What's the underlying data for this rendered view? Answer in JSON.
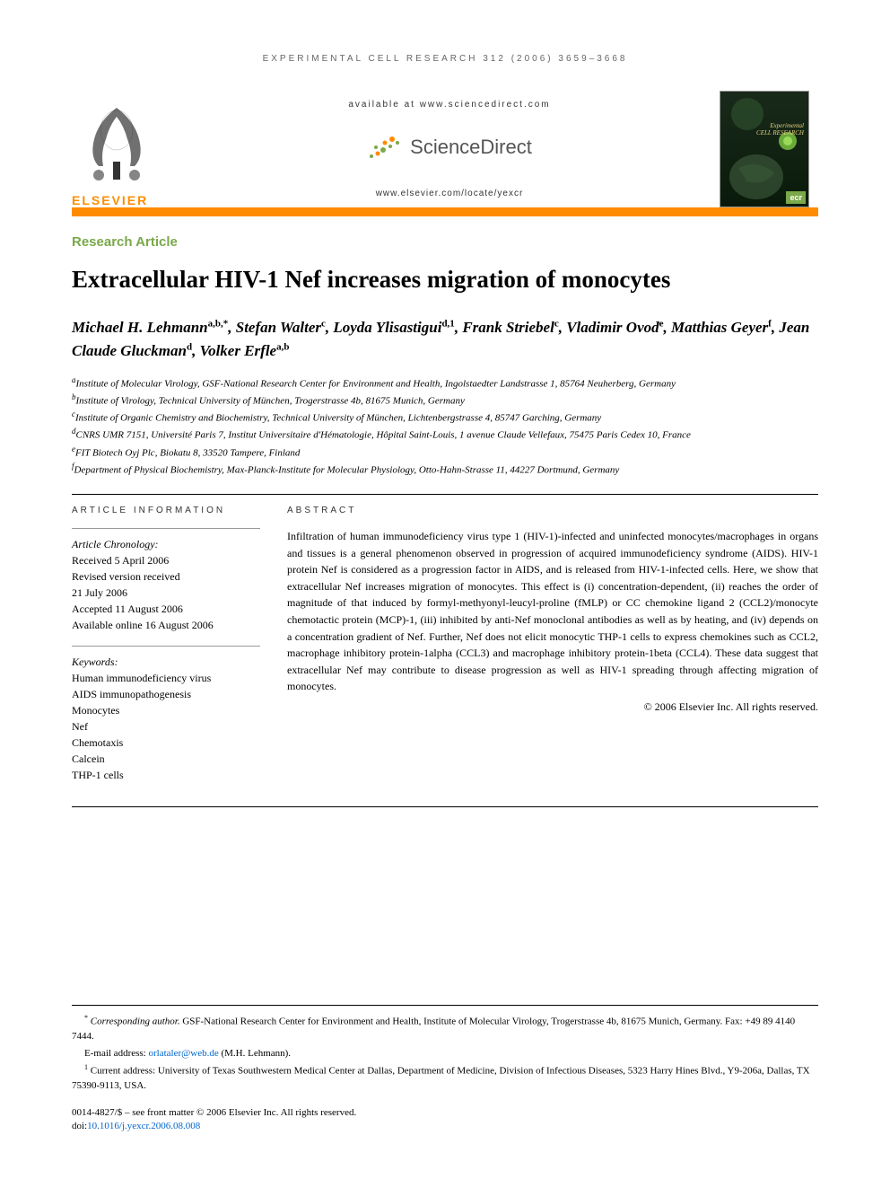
{
  "running_header": "EXPERIMENTAL CELL RESEARCH 312 (2006) 3659–3668",
  "masthead": {
    "elsevier": "ELSEVIER",
    "available": "available at www.sciencedirect.com",
    "sciencedirect": "ScienceDirect",
    "locate": "www.elsevier.com/locate/yexcr",
    "journal_title_1": "Experimental",
    "journal_title_2": "CELL RESEARCH",
    "ecr": "ecr"
  },
  "article_type": "Research Article",
  "title": "Extracellular HIV-1 Nef increases migration of monocytes",
  "authors_html": "Michael H. Lehmann<sup>a,b,*</sup>, Stefan Walter<sup>c</sup>, Loyda Ylisastigui<sup>d,1</sup>, Frank Striebel<sup>c</sup>, Vladimir Ovod<sup>e</sup>, Matthias Geyer<sup>f</sup>, Jean Claude Gluckman<sup>d</sup>, Volker Erfle<sup>a,b</sup>",
  "affiliations": [
    {
      "sup": "a",
      "text": "Institute of Molecular Virology, GSF-National Research Center for Environment and Health, Ingolstaedter Landstrasse 1, 85764 Neuherberg, Germany"
    },
    {
      "sup": "b",
      "text": "Institute of Virology, Technical University of München, Trogerstrasse 4b, 81675 Munich, Germany"
    },
    {
      "sup": "c",
      "text": "Institute of Organic Chemistry and Biochemistry, Technical University of München, Lichtenbergstrasse 4, 85747 Garching, Germany"
    },
    {
      "sup": "d",
      "text": "CNRS UMR 7151, Université Paris 7, Institut Universitaire d'Hématologie, Hôpital Saint-Louis, 1 avenue Claude Vellefaux, 75475 Paris Cedex 10, France"
    },
    {
      "sup": "e",
      "text": "FIT Biotech Oyj Plc, Biokatu 8, 33520 Tampere, Finland"
    },
    {
      "sup": "f",
      "text": "Department of Physical Biochemistry, Max-Planck-Institute for Molecular Physiology, Otto-Hahn-Strasse 11, 44227 Dortmund, Germany"
    }
  ],
  "info_heading": "ARTICLE INFORMATION",
  "abstract_heading": "ABSTRACT",
  "chronology": {
    "label": "Article Chronology:",
    "lines": [
      "Received 5 April 2006",
      "Revised version received",
      "21 July 2006",
      "Accepted 11 August 2006",
      "Available online 16 August 2006"
    ]
  },
  "keywords": {
    "label": "Keywords:",
    "items": [
      "Human immunodeficiency virus",
      "AIDS immunopathogenesis",
      "Monocytes",
      "Nef",
      "Chemotaxis",
      "Calcein",
      "THP-1 cells"
    ]
  },
  "abstract": "Infiltration of human immunodeficiency virus type 1 (HIV-1)-infected and uninfected monocytes/macrophages in organs and tissues is a general phenomenon observed in progression of acquired immunodeficiency syndrome (AIDS). HIV-1 protein Nef is considered as a progression factor in AIDS, and is released from HIV-1-infected cells. Here, we show that extracellular Nef increases migration of monocytes. This effect is (i) concentration-dependent, (ii) reaches the order of magnitude of that induced by formyl-methyonyl-leucyl-proline (fMLP) or CC chemokine ligand 2 (CCL2)/monocyte chemotactic protein (MCP)-1, (iii) inhibited by anti-Nef monoclonal antibodies as well as by heating, and (iv) depends on a concentration gradient of Nef. Further, Nef does not elicit monocytic THP-1 cells to express chemokines such as CCL2, macrophage inhibitory protein-1alpha (CCL3) and macrophage inhibitory protein-1beta (CCL4). These data suggest that extracellular Nef may contribute to disease progression as well as HIV-1 spreading through affecting migration of monocytes.",
  "copyright": "© 2006 Elsevier Inc. All rights reserved.",
  "footnotes": {
    "corresponding": "Corresponding author. GSF-National Research Center for Environment and Health, Institute of Molecular Virology, Trogerstrasse 4b, 81675 Munich, Germany. Fax: +49 89 4140 7444.",
    "email_label": "E-mail address: ",
    "email": "orlataler@web.de",
    "email_name": " (M.H. Lehmann).",
    "note1": "Current address: University of Texas Southwestern Medical Center at Dallas, Department of Medicine, Division of Infectious Diseases, 5323 Harry Hines Blvd., Y9-206a, Dallas, TX 75390-9113, USA."
  },
  "bottom": {
    "line1": "0014-4827/$ – see front matter © 2006 Elsevier Inc. All rights reserved.",
    "doi_label": "doi:",
    "doi": "10.1016/j.yexcr.2006.08.008"
  },
  "colors": {
    "orange": "#ff8c00",
    "green": "#7aa84a",
    "link": "#0066cc"
  }
}
